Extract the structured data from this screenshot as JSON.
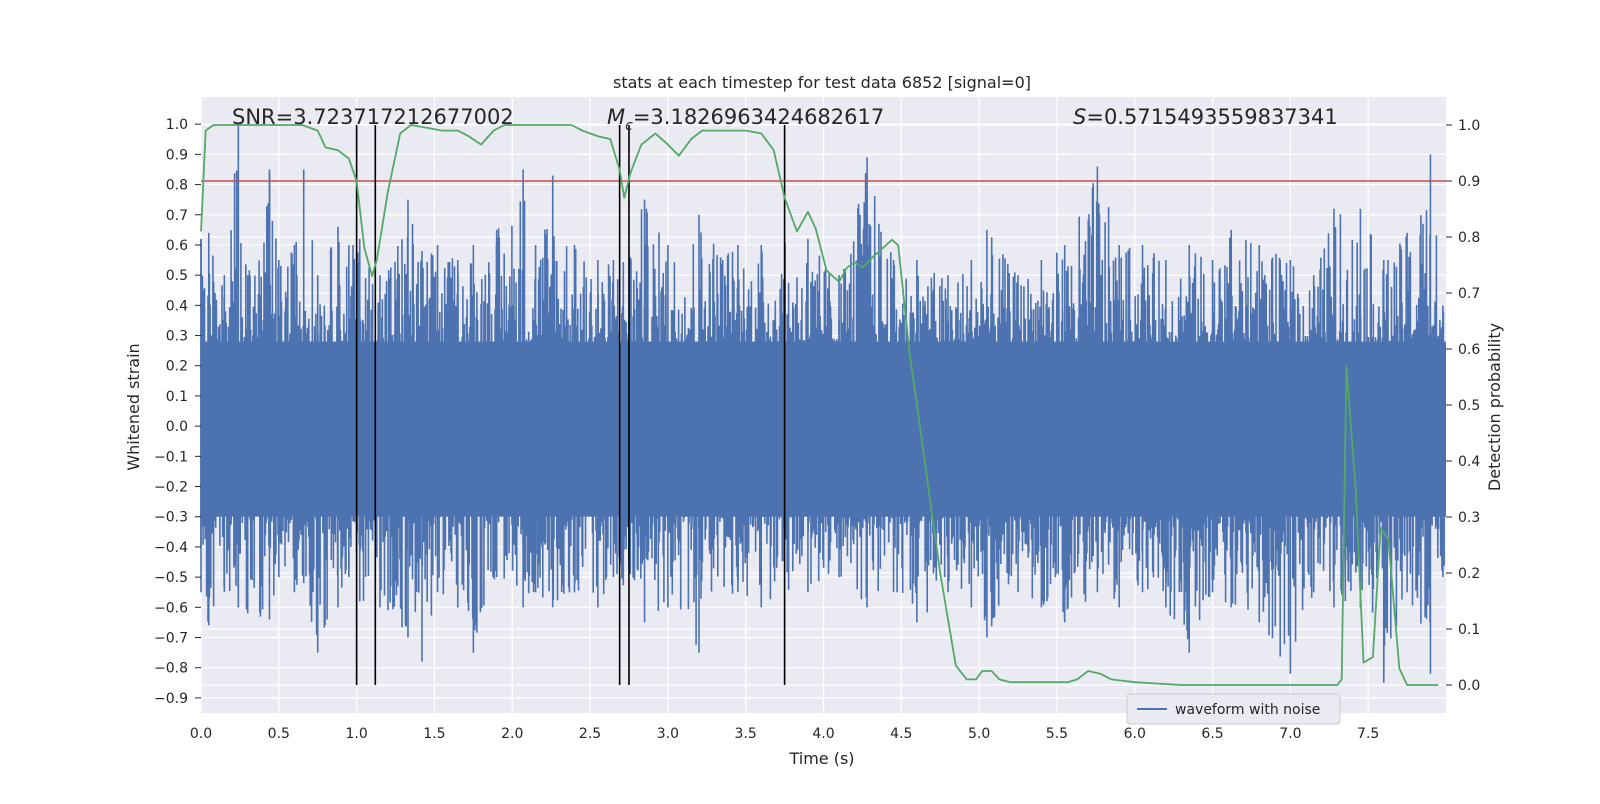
{
  "chart_data": {
    "type": "line",
    "title": "stats at each timestep for test data 6852 [signal=0]",
    "xlabel": "Time (s)",
    "ylabel": "Whitened strain",
    "y2label": "Detection probability",
    "xlim": [
      0.0,
      8.0
    ],
    "ylim": [
      -0.95,
      1.09
    ],
    "y2lim": [
      -0.05,
      1.05
    ],
    "x_ticks": [
      "0.0",
      "0.5",
      "1.0",
      "1.5",
      "2.0",
      "2.5",
      "3.0",
      "3.5",
      "4.0",
      "4.5",
      "5.0",
      "5.5",
      "6.0",
      "6.5",
      "7.0",
      "7.5"
    ],
    "y_ticks": [
      "1.0",
      "0.9",
      "0.8",
      "0.7",
      "0.6",
      "0.5",
      "0.4",
      "0.3",
      "0.2",
      "0.1",
      "0.0",
      "−0.1",
      "−0.2",
      "−0.3",
      "−0.4",
      "−0.5",
      "−0.6",
      "−0.7",
      "−0.8",
      "−0.9"
    ],
    "y2_ticks": [
      "1.0",
      "0.9",
      "0.8",
      "0.7",
      "0.6",
      "0.5",
      "0.4",
      "0.3",
      "0.2",
      "0.1",
      "0.0"
    ],
    "grid": true,
    "legend_position": "lower-right",
    "annotations": {
      "snr": "SNR=3.723717212677002",
      "mc_symbol": "M",
      "mc_sub": "c",
      "mc_value": "=3.1826963424682617",
      "s_symbol": "S",
      "s_value": "=0.5715493559837341"
    },
    "threshold": {
      "value": 0.9,
      "axis": "right",
      "color": "#c44e52"
    },
    "vertical_markers": [
      1.0,
      1.12,
      2.69,
      2.75,
      3.75
    ],
    "series": [
      {
        "name": "waveform with noise",
        "axis": "left",
        "color": "#4c72b0",
        "envelope_note": "dense noise; representative peaks listed",
        "peaks": [
          [
            0.0,
            0.62,
            -0.55
          ],
          [
            0.05,
            0.64,
            -0.66
          ],
          [
            0.15,
            0.5,
            -0.55
          ],
          [
            0.24,
            1.0,
            -0.6
          ],
          [
            0.3,
            0.5,
            -0.62
          ],
          [
            0.44,
            0.85,
            -0.64
          ],
          [
            0.5,
            0.55,
            -0.5
          ],
          [
            0.6,
            0.6,
            -0.55
          ],
          [
            0.66,
            0.85,
            -0.52
          ],
          [
            0.75,
            0.5,
            -0.75
          ],
          [
            0.88,
            0.66,
            -0.6
          ],
          [
            0.95,
            0.6,
            -0.5
          ],
          [
            1.02,
            0.62,
            -0.58
          ],
          [
            1.15,
            0.5,
            -0.6
          ],
          [
            1.33,
            0.75,
            -0.7
          ],
          [
            1.42,
            0.58,
            -0.78
          ],
          [
            1.52,
            0.6,
            -0.55
          ],
          [
            1.65,
            0.55,
            -0.6
          ],
          [
            1.75,
            0.6,
            -0.75
          ],
          [
            1.9,
            0.65,
            -0.5
          ],
          [
            2.07,
            0.85,
            -0.6
          ],
          [
            2.15,
            0.6,
            -0.55
          ],
          [
            2.26,
            0.83,
            -0.6
          ],
          [
            2.4,
            0.6,
            -0.55
          ],
          [
            2.55,
            0.55,
            -0.6
          ],
          [
            2.65,
            0.55,
            -0.5
          ],
          [
            2.85,
            0.75,
            -0.65
          ],
          [
            3.0,
            0.6,
            -0.6
          ],
          [
            3.2,
            0.7,
            -0.75
          ],
          [
            3.45,
            0.6,
            -0.55
          ],
          [
            3.6,
            0.6,
            -0.6
          ],
          [
            3.9,
            0.62,
            -0.55
          ],
          [
            4.1,
            0.5,
            -0.5
          ],
          [
            4.28,
            0.89,
            -0.6
          ],
          [
            4.45,
            0.55,
            -0.55
          ],
          [
            4.6,
            0.55,
            -0.65
          ],
          [
            4.8,
            0.5,
            -0.55
          ],
          [
            4.95,
            0.55,
            -0.6
          ],
          [
            5.05,
            0.65,
            -0.7
          ],
          [
            5.25,
            0.5,
            -0.55
          ],
          [
            5.4,
            0.55,
            -0.6
          ],
          [
            5.55,
            0.6,
            -0.65
          ],
          [
            5.76,
            0.86,
            -0.55
          ],
          [
            5.9,
            0.6,
            -0.6
          ],
          [
            6.05,
            0.6,
            -0.55
          ],
          [
            6.2,
            0.55,
            -0.6
          ],
          [
            6.35,
            0.6,
            -0.75
          ],
          [
            6.5,
            0.55,
            -0.55
          ],
          [
            6.62,
            0.65,
            -0.6
          ],
          [
            6.8,
            0.6,
            -0.65
          ],
          [
            7.0,
            0.55,
            -0.82
          ],
          [
            7.15,
            0.5,
            -0.55
          ],
          [
            7.28,
            0.72,
            -0.6
          ],
          [
            7.45,
            0.72,
            -0.6
          ],
          [
            7.6,
            0.55,
            -0.85
          ],
          [
            7.75,
            0.64,
            -0.55
          ],
          [
            7.9,
            0.9,
            -0.82
          ],
          [
            7.98,
            0.4,
            -0.5
          ]
        ]
      },
      {
        "name": "detection probability",
        "axis": "right",
        "color": "#55a868",
        "x": [
          0.0,
          0.03,
          0.08,
          0.15,
          0.25,
          0.35,
          0.5,
          0.65,
          0.75,
          0.8,
          0.88,
          0.95,
          1.0,
          1.05,
          1.1,
          1.13,
          1.2,
          1.28,
          1.35,
          1.45,
          1.55,
          1.65,
          1.72,
          1.8,
          1.88,
          1.95,
          2.05,
          2.2,
          2.3,
          2.38,
          2.45,
          2.55,
          2.63,
          2.69,
          2.72,
          2.76,
          2.83,
          2.92,
          3.0,
          3.07,
          3.15,
          3.22,
          3.3,
          3.4,
          3.5,
          3.6,
          3.68,
          3.75,
          3.83,
          3.9,
          3.95,
          4.02,
          4.1,
          4.15,
          4.2,
          4.25,
          4.32,
          4.38,
          4.44,
          4.48,
          4.55,
          4.65,
          4.75,
          4.85,
          4.92,
          4.98,
          5.02,
          5.08,
          5.13,
          5.2,
          5.3,
          5.4,
          5.5,
          5.57,
          5.63,
          5.7,
          5.78,
          5.85,
          6.0,
          6.3,
          6.6,
          6.9,
          7.1,
          7.3,
          7.33,
          7.36,
          7.42,
          7.47,
          7.53,
          7.58,
          7.63,
          7.7,
          7.75,
          7.8,
          7.87,
          7.95
        ],
        "values": [
          0.81,
          0.99,
          1.0,
          1.0,
          1.0,
          1.0,
          1.0,
          1.0,
          0.99,
          0.96,
          0.955,
          0.94,
          0.9,
          0.78,
          0.73,
          0.76,
          0.88,
          0.985,
          1.0,
          0.995,
          0.99,
          0.99,
          0.98,
          0.965,
          0.99,
          1.0,
          1.0,
          1.0,
          1.0,
          1.0,
          0.99,
          0.98,
          0.975,
          0.92,
          0.87,
          0.915,
          0.965,
          0.985,
          0.965,
          0.945,
          0.975,
          0.99,
          0.99,
          0.99,
          0.99,
          0.985,
          0.955,
          0.87,
          0.81,
          0.845,
          0.815,
          0.74,
          0.72,
          0.745,
          0.755,
          0.745,
          0.765,
          0.78,
          0.795,
          0.785,
          0.6,
          0.4,
          0.2,
          0.035,
          0.01,
          0.01,
          0.025,
          0.025,
          0.01,
          0.005,
          0.005,
          0.005,
          0.005,
          0.005,
          0.01,
          0.025,
          0.02,
          0.01,
          0.005,
          0.0,
          0.0,
          0.0,
          0.0,
          0.0,
          0.01,
          0.57,
          0.35,
          0.04,
          0.05,
          0.28,
          0.26,
          0.03,
          0.0,
          0.0,
          0.0,
          0.0
        ]
      }
    ]
  }
}
